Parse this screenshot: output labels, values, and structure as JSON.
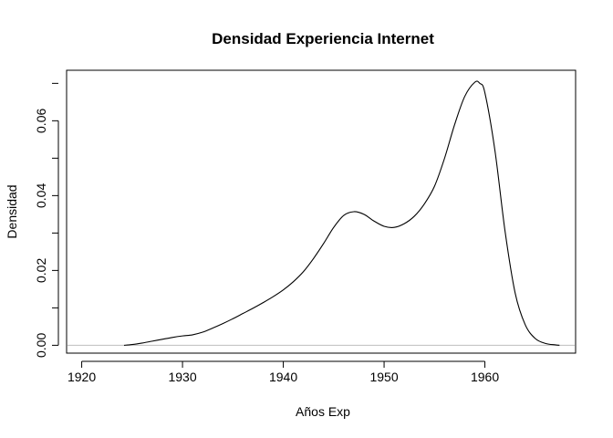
{
  "chart_data": {
    "type": "line",
    "title": "Densidad Experiencia Internet",
    "xlabel": "Años Exp",
    "ylabel": "Densidad",
    "xlim": [
      1918.5,
      1969.0
    ],
    "ylim": [
      -0.0021,
      0.0735
    ],
    "x_ticks": [
      1920,
      1930,
      1940,
      1950,
      1960
    ],
    "y_ticks": [
      0.0,
      0.02,
      0.04,
      0.06
    ],
    "y_tick_labels": [
      "0.00",
      "0.02",
      "0.04",
      "0.06"
    ],
    "baseline": 0,
    "grid": false,
    "legend": "none",
    "line_color": "#000000",
    "baseline_color": "#bebebe",
    "series": [
      {
        "x": [
          1924.2,
          1925.0,
          1926.0,
          1927.0,
          1928.0,
          1929.0,
          1930.0,
          1931.0,
          1932.0,
          1933.0,
          1934.0,
          1935.0,
          1936.0,
          1937.0,
          1938.0,
          1939.0,
          1940.0,
          1941.0,
          1942.0,
          1943.0,
          1944.0,
          1945.0,
          1946.0,
          1947.0,
          1948.0,
          1949.0,
          1950.0,
          1951.0,
          1952.0,
          1953.0,
          1954.0,
          1955.0,
          1956.0,
          1957.0,
          1958.0,
          1959.0,
          1959.5,
          1960.0,
          1961.0,
          1962.0,
          1963.0,
          1964.0,
          1965.0,
          1966.0,
          1967.0,
          1967.4
        ],
        "y": [
          0.0,
          0.0002,
          0.0006,
          0.0011,
          0.0016,
          0.0021,
          0.0025,
          0.0028,
          0.0035,
          0.0046,
          0.0058,
          0.0071,
          0.0085,
          0.0099,
          0.0114,
          0.013,
          0.0148,
          0.017,
          0.0197,
          0.0232,
          0.0272,
          0.0315,
          0.0347,
          0.0357,
          0.035,
          0.0332,
          0.0318,
          0.0315,
          0.0325,
          0.0345,
          0.0378,
          0.0425,
          0.05,
          0.059,
          0.0665,
          0.0703,
          0.07,
          0.0675,
          0.052,
          0.0305,
          0.014,
          0.0055,
          0.0018,
          0.0005,
          0.0001,
          0.0
        ]
      }
    ]
  }
}
